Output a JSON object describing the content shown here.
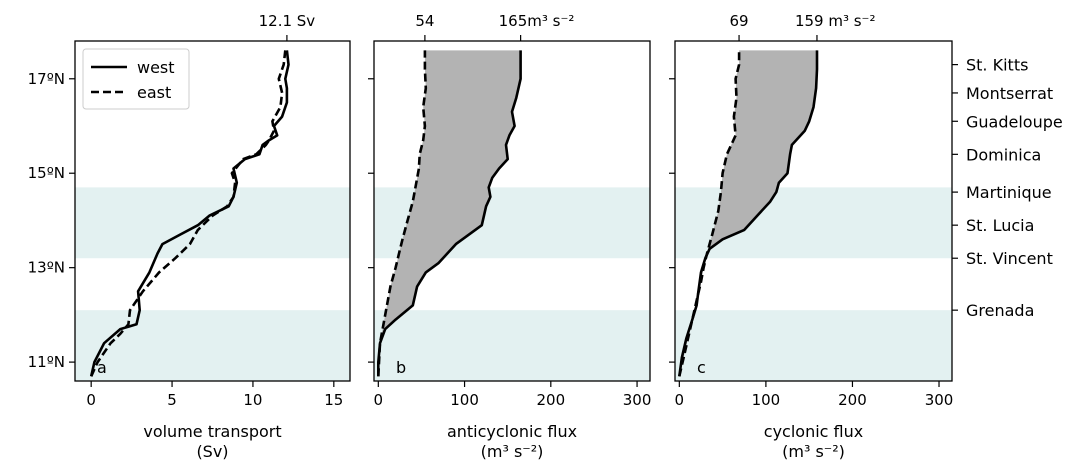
{
  "colors": {
    "band": "#e3f1f1",
    "fill_between": "#b3b3b3",
    "line": "#000000"
  },
  "chart_data": [
    {
      "id": "a",
      "type": "line",
      "panel_label": "a",
      "xlabel": [
        "volume transport",
        "(Sv)"
      ],
      "xlim": [
        -1,
        16
      ],
      "xticks": [
        0,
        5,
        10,
        15
      ],
      "ylim": [
        10.6,
        17.8
      ],
      "yticks": [
        11,
        13,
        15,
        17
      ],
      "ytick_labels": [
        "11ºN",
        "13ºN",
        "15ºN",
        "17ºN"
      ],
      "top_annotations": [
        {
          "x": 12.1,
          "label": "12.1 Sv"
        }
      ],
      "legend": {
        "placement": "top-left",
        "entries": [
          "west",
          "east"
        ]
      },
      "series": [
        {
          "name": "west",
          "style": "solid",
          "x": [
            0,
            0.2,
            0.8,
            1.8,
            2.8,
            3.0,
            2.9,
            3.6,
            4.1,
            4.4,
            5.5,
            6.6,
            7.3,
            8.5,
            8.8,
            9.0,
            8.8,
            9.5,
            10.4,
            10.6,
            11.0,
            11.5,
            11.3,
            11.8,
            12.1,
            12.1,
            12.0,
            12.2,
            12.1
          ],
          "y": [
            10.7,
            11.0,
            11.4,
            11.7,
            11.8,
            12.1,
            12.5,
            12.9,
            13.3,
            13.5,
            13.7,
            13.9,
            14.1,
            14.3,
            14.5,
            14.8,
            15.1,
            15.3,
            15.4,
            15.6,
            15.7,
            15.8,
            16.0,
            16.2,
            16.5,
            16.8,
            17.0,
            17.3,
            17.6
          ]
        },
        {
          "name": "east",
          "style": "dashed",
          "x": [
            0,
            0.4,
            1.2,
            1.8,
            2.3,
            2.4,
            3.2,
            4.2,
            5.2,
            6.1,
            6.6,
            7.5,
            8.4,
            8.8,
            8.9,
            8.7,
            9.4,
            10.2,
            10.8,
            11.0,
            11.3,
            11.2,
            11.7,
            11.8,
            11.6,
            11.9,
            12.0
          ],
          "y": [
            10.7,
            11.0,
            11.4,
            11.6,
            11.8,
            12.1,
            12.5,
            12.9,
            13.2,
            13.5,
            13.8,
            14.1,
            14.3,
            14.5,
            14.8,
            15.0,
            15.3,
            15.4,
            15.6,
            15.7,
            15.9,
            16.1,
            16.4,
            16.7,
            17.0,
            17.3,
            17.6
          ]
        }
      ]
    },
    {
      "id": "b",
      "type": "area",
      "panel_label": "b",
      "xlabel": [
        "anticyclonic flux",
        "(m³ s⁻²)"
      ],
      "xlim": [
        -5,
        315
      ],
      "xticks": [
        0,
        100,
        200,
        300
      ],
      "ylim": [
        10.6,
        17.8
      ],
      "yticks": [
        11,
        13,
        15,
        17
      ],
      "ytick_labels": [
        "11ºN",
        "13ºN",
        "15ºN",
        "17ºN"
      ],
      "top_annotations": [
        {
          "x": 54,
          "label": "54"
        },
        {
          "x": 165,
          "label": "165m³ s⁻²"
        }
      ],
      "series": [
        {
          "name": "west",
          "style": "solid",
          "x": [
            0,
            0,
            2,
            8,
            20,
            40,
            45,
            55,
            70,
            90,
            120,
            125,
            130,
            128,
            132,
            140,
            150,
            148,
            152,
            158,
            155,
            160,
            165,
            165
          ],
          "y": [
            10.7,
            11.0,
            11.4,
            11.7,
            11.9,
            12.2,
            12.6,
            12.9,
            13.1,
            13.5,
            13.9,
            14.3,
            14.5,
            14.7,
            14.9,
            15.1,
            15.3,
            15.6,
            15.8,
            16.0,
            16.3,
            16.6,
            17.0,
            17.6
          ]
        },
        {
          "name": "east",
          "style": "dashed",
          "x": [
            0,
            2,
            8,
            14,
            20,
            24,
            28,
            34,
            40,
            44,
            47,
            48,
            52,
            54,
            52,
            55,
            54,
            54
          ],
          "y": [
            10.7,
            11.4,
            12.0,
            12.6,
            13.0,
            13.3,
            13.6,
            14.0,
            14.4,
            14.8,
            15.1,
            15.4,
            15.7,
            16.0,
            16.4,
            16.8,
            17.2,
            17.6
          ]
        }
      ]
    },
    {
      "id": "c",
      "type": "area",
      "panel_label": "c",
      "xlabel": [
        "cyclonic flux",
        "(m³ s⁻²)"
      ],
      "xlim": [
        -5,
        315
      ],
      "xticks": [
        0,
        100,
        200,
        300
      ],
      "ylim": [
        10.6,
        17.8
      ],
      "yticks": [
        11,
        13,
        15,
        17
      ],
      "ytick_labels": [
        "11ºN",
        "13ºN",
        "15ºN",
        "17ºN"
      ],
      "top_annotations": [
        {
          "x": 69,
          "label": "69"
        },
        {
          "x": 159,
          "label": "159 m³ s⁻²"
        }
      ],
      "islands": [
        {
          "lat": 17.3,
          "name": "St. Kitts"
        },
        {
          "lat": 16.7,
          "name": "Montserrat"
        },
        {
          "lat": 16.1,
          "name": "Guadeloupe"
        },
        {
          "lat": 15.4,
          "name": "Dominica"
        },
        {
          "lat": 14.6,
          "name": "Martinique"
        },
        {
          "lat": 13.9,
          "name": "St. Lucia"
        },
        {
          "lat": 13.2,
          "name": "St. Vincent"
        },
        {
          "lat": 12.1,
          "name": "Grenada"
        }
      ],
      "series": [
        {
          "name": "west",
          "style": "solid",
          "x": [
            0,
            3,
            8,
            15,
            20,
            22,
            25,
            30,
            35,
            50,
            75,
            90,
            105,
            112,
            115,
            125,
            128,
            130,
            145,
            150,
            155,
            158,
            159,
            159
          ],
          "y": [
            10.7,
            11.1,
            11.5,
            11.9,
            12.2,
            12.5,
            12.9,
            13.2,
            13.4,
            13.6,
            13.8,
            14.1,
            14.4,
            14.6,
            14.8,
            15.0,
            15.4,
            15.6,
            15.9,
            16.1,
            16.4,
            16.8,
            17.2,
            17.6
          ]
        },
        {
          "name": "east",
          "style": "dashed",
          "x": [
            0,
            5,
            10,
            15,
            20,
            25,
            28,
            32,
            38,
            45,
            48,
            50,
            55,
            65,
            63,
            66,
            65,
            69,
            69
          ],
          "y": [
            10.7,
            11.1,
            11.5,
            11.9,
            12.3,
            12.7,
            13.0,
            13.3,
            13.7,
            14.2,
            14.6,
            15.0,
            15.4,
            15.8,
            16.2,
            16.6,
            17.0,
            17.3,
            17.6
          ]
        }
      ]
    }
  ],
  "bands": [
    {
      "ymin": 10.6,
      "ymax": 12.1
    },
    {
      "ymin": 13.2,
      "ymax": 14.7
    }
  ]
}
